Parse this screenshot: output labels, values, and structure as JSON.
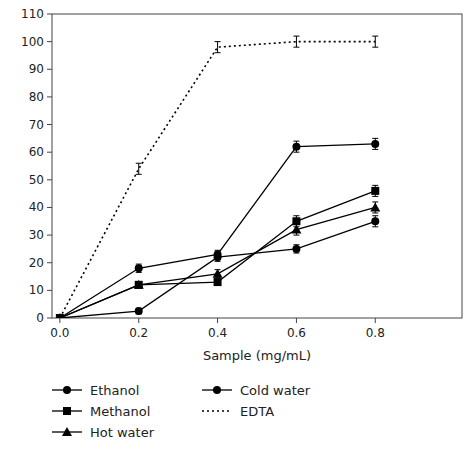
{
  "chart_data": {
    "type": "line",
    "xlabel": "Sample (mg/mL)",
    "x": [
      0,
      0.2,
      0.4,
      0.6,
      0.8
    ],
    "color": "#000000",
    "series": [
      {
        "name": "Ethanol",
        "marker": "circle",
        "line_style": "solid",
        "values": [
          0,
          18,
          23,
          62,
          63
        ],
        "errors": [
          0,
          1.5,
          1.5,
          2,
          2
        ]
      },
      {
        "name": "Methanol",
        "marker": "square",
        "line_style": "solid",
        "values": [
          0,
          12,
          13,
          35,
          46
        ],
        "errors": [
          0,
          1,
          1,
          2,
          2
        ]
      },
      {
        "name": "Hot water",
        "marker": "triangle",
        "line_style": "solid",
        "values": [
          0,
          12,
          16,
          32,
          40
        ],
        "errors": [
          0,
          1,
          1.5,
          2,
          2
        ]
      },
      {
        "name": "Cold water",
        "marker": "circle",
        "line_style": "solid",
        "values": [
          0,
          2.5,
          22,
          25,
          35
        ],
        "errors": [
          0,
          1,
          1.5,
          1.5,
          2
        ]
      },
      {
        "name": "EDTA",
        "marker": "none",
        "line_style": "dotted",
        "values": [
          0,
          54,
          98,
          100,
          100
        ],
        "errors": [
          0,
          2,
          2,
          2,
          2
        ]
      }
    ],
    "xlim": [
      -0.02,
      1.02
    ],
    "ylim": [
      0,
      110
    ],
    "xticks": [
      {
        "value": 0,
        "label": "0.0"
      },
      0.2,
      0.4,
      0.6,
      0.8
    ],
    "yticks": [
      0,
      10,
      20,
      30,
      40,
      50,
      60,
      70,
      80,
      90,
      100,
      110
    ],
    "grid": false,
    "legend": "bottom"
  }
}
